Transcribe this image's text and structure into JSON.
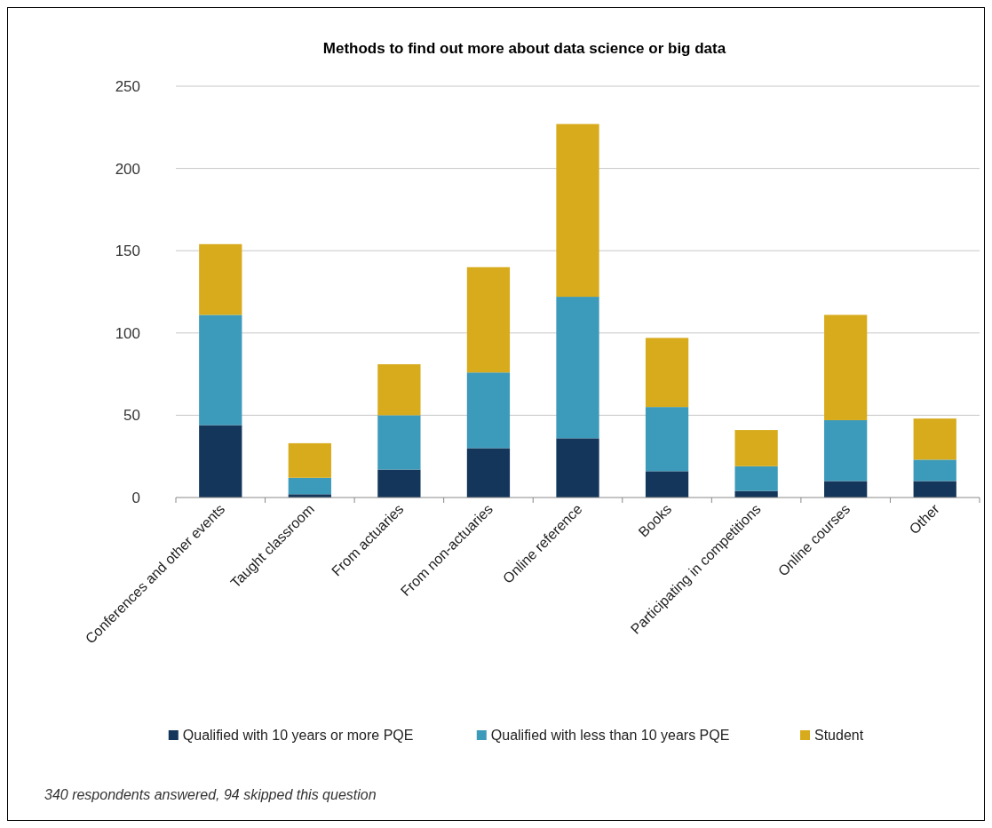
{
  "chart_data": {
    "type": "bar",
    "title": "Methods to find out more about data science or big data",
    "categories": [
      "Conferences and other events",
      "Taught classroom",
      "From actuaries",
      "From non-actuaries",
      "Online reference",
      "Books",
      "Participating in competitions",
      "Online courses",
      "Other"
    ],
    "series": [
      {
        "name": "Qualified with 10 years or more PQE",
        "color": "#14365a",
        "values": [
          44,
          2,
          17,
          30,
          36,
          16,
          4,
          10,
          10
        ]
      },
      {
        "name": "Qualified with less than 10 years PQE",
        "color": "#3c9aba",
        "values": [
          67,
          10,
          33,
          46,
          86,
          39,
          15,
          37,
          13
        ]
      },
      {
        "name": "Student",
        "color": "#d8ab1c",
        "values": [
          43,
          21,
          31,
          64,
          105,
          42,
          22,
          64,
          25
        ]
      }
    ],
    "stacked": true,
    "ylim": [
      0,
      250
    ],
    "yticks": [
      0,
      50,
      100,
      150,
      200,
      250
    ],
    "grid": "y",
    "legend": "bottom",
    "annotations": [
      "340 respondents answered, 94 skipped this question"
    ]
  }
}
